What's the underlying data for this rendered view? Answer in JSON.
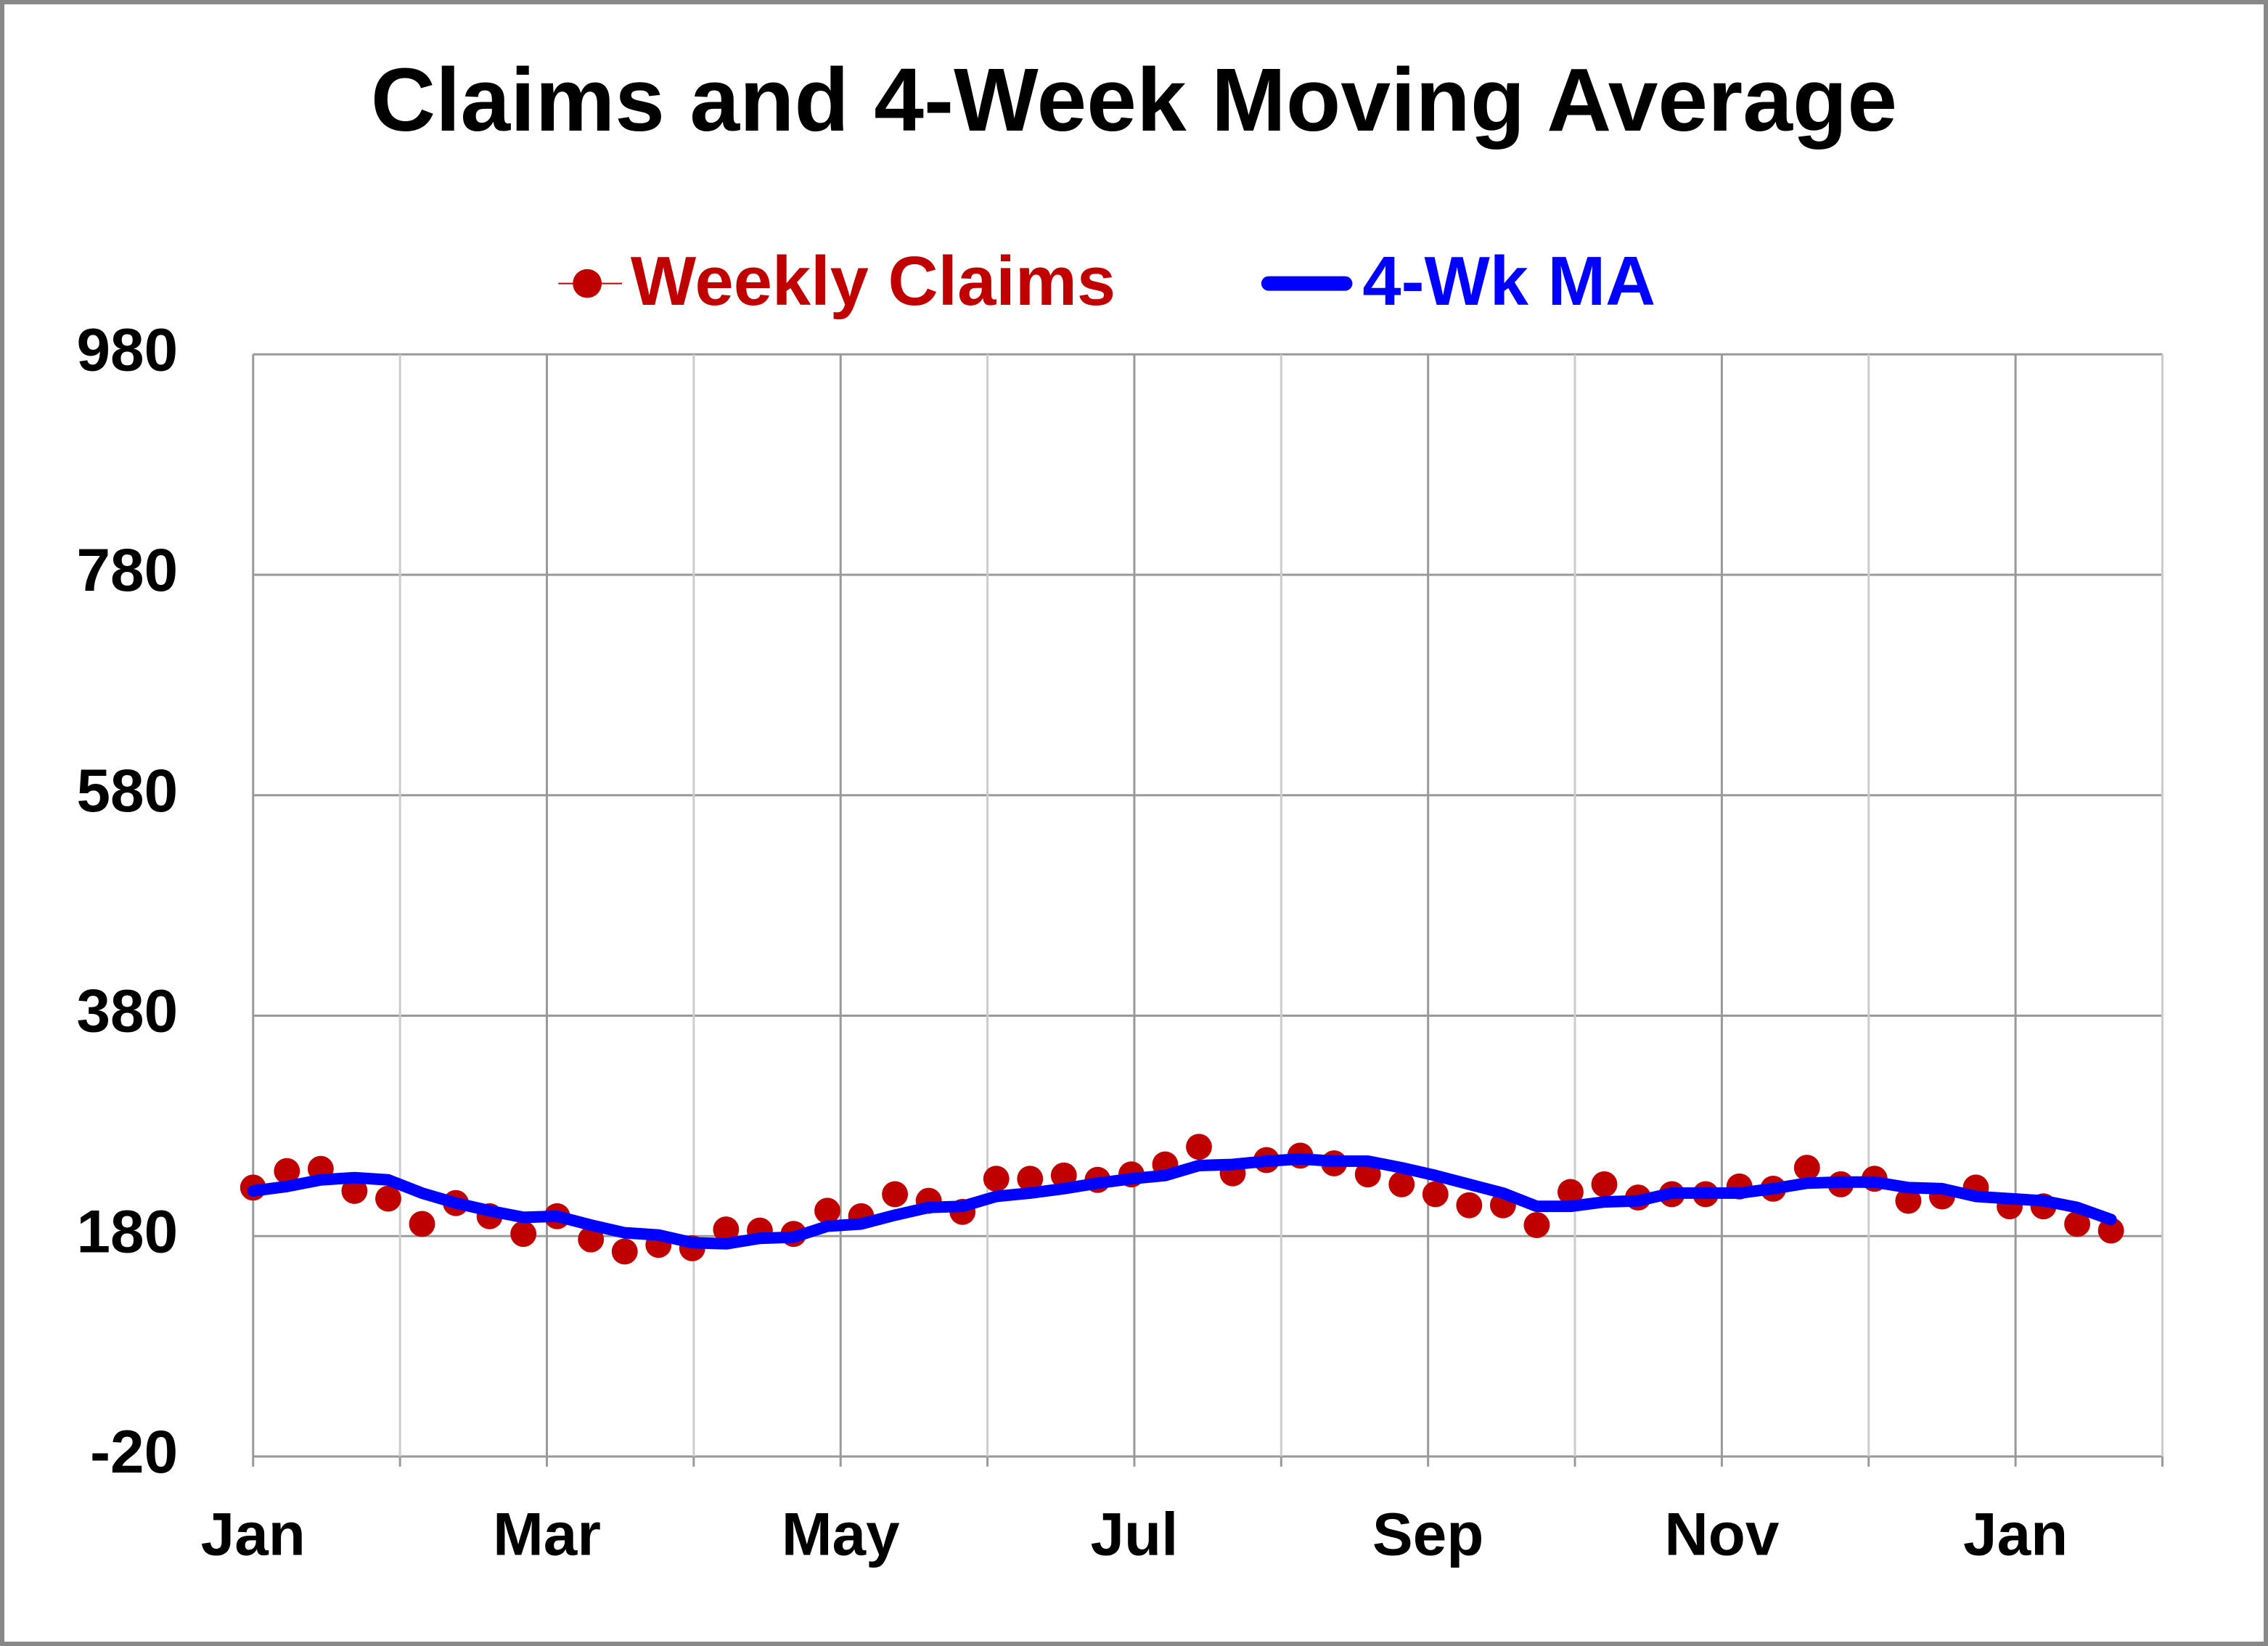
{
  "chart_data": {
    "type": "line",
    "title": "Claims and 4-Week Moving Average",
    "x": [
      0,
      0.23,
      0.46,
      0.69,
      0.92,
      1.15,
      1.38,
      1.61,
      1.84,
      2.07,
      2.3,
      2.53,
      2.76,
      2.99,
      3.22,
      3.45,
      3.68,
      3.91,
      4.14,
      4.37,
      4.6,
      4.83,
      5.06,
      5.29,
      5.52,
      5.75,
      5.98,
      6.21,
      6.44,
      6.67,
      6.9,
      7.13,
      7.36,
      7.59,
      7.82,
      8.05,
      8.28,
      8.51,
      8.74,
      8.97,
      9.2,
      9.43,
      9.66,
      9.89,
      10.12,
      10.35,
      10.58,
      10.81,
      11.04,
      11.27,
      11.5,
      11.73,
      11.96,
      12.19,
      12.42,
      12.65
    ],
    "series": [
      {
        "name": "Weekly Claims",
        "color": "#c00000",
        "style": "markers",
        "values": [
          224,
          239,
          241,
          221,
          214,
          191,
          210,
          198,
          182,
          198,
          177,
          166,
          172,
          169,
          186,
          185,
          182,
          203,
          198,
          218,
          212,
          202,
          232,
          232,
          235,
          231,
          236,
          245,
          261,
          237,
          249,
          253,
          246,
          236,
          227,
          218,
          208,
          208,
          190,
          220,
          227,
          215,
          218,
          218,
          225,
          223,
          242,
          227,
          232,
          212,
          216,
          224,
          207,
          207,
          191,
          185
        ]
      },
      {
        "name": "4-Wk MA",
        "color": "#0000ff",
        "style": "line",
        "values": [
          221,
          225,
          231,
          233,
          231,
          219,
          210,
          203,
          197,
          198,
          190,
          183,
          181,
          174,
          173,
          178,
          179,
          189,
          191,
          199,
          206,
          207,
          216,
          219,
          223,
          228,
          232,
          235,
          244,
          245,
          248,
          250,
          248,
          248,
          242,
          235,
          227,
          219,
          207,
          207,
          211,
          212,
          219,
          219,
          219,
          223,
          228,
          229,
          229,
          224,
          223,
          216,
          214,
          212,
          206,
          195
        ]
      }
    ],
    "xlim": [
      0,
      13
    ],
    "xticks": [
      {
        "value": 0,
        "label": "Jan"
      },
      {
        "value": 2,
        "label": "Mar"
      },
      {
        "value": 4,
        "label": "May"
      },
      {
        "value": 6,
        "label": "Jul"
      },
      {
        "value": 8,
        "label": "Sep"
      },
      {
        "value": 10,
        "label": "Nov"
      },
      {
        "value": 12,
        "label": "Jan"
      }
    ],
    "xminor": [
      1,
      3,
      5,
      7,
      9,
      11,
      13
    ],
    "ylim": [
      -20,
      980
    ],
    "yticks": [
      -20,
      180,
      380,
      580,
      780,
      980
    ],
    "grid": true
  }
}
